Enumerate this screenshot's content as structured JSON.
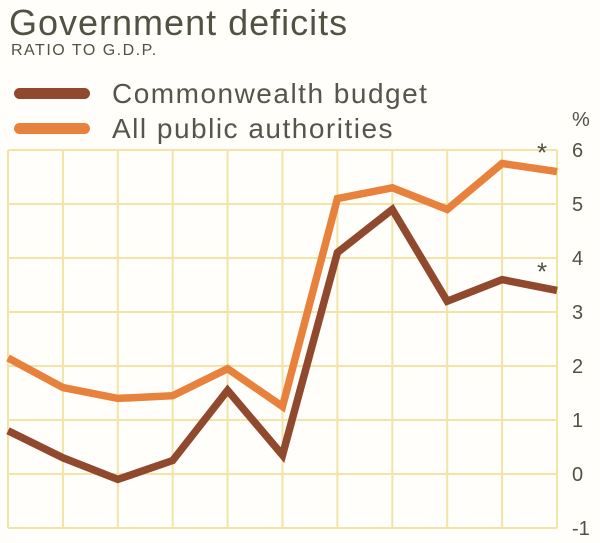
{
  "header": {
    "title": "Government deficits",
    "subtitle": "RATIO TO G.D.P."
  },
  "legend": {
    "items": [
      {
        "label": "Commonwealth budget",
        "color": "#91492e"
      },
      {
        "label": "All public authorities",
        "color": "#e8813c"
      }
    ]
  },
  "axis": {
    "unit": "%",
    "tick_color": "#515243"
  },
  "chart_data": {
    "type": "line",
    "title": "Government deficits",
    "subtitle": "RATIO TO G.D.P.",
    "ylabel": "%",
    "xlabel": "",
    "x_tick_labels": [],
    "ylim": [
      -1,
      6
    ],
    "yticks": [
      6,
      5,
      4,
      3,
      2,
      1,
      0,
      -1
    ],
    "grid": true,
    "grid_color": "#f1e4a6",
    "legend_position": "top-left",
    "series": [
      {
        "name": "Commonwealth budget",
        "color": "#91492e",
        "values": [
          0.8,
          0.3,
          -0.1,
          0.25,
          1.55,
          0.35,
          4.1,
          4.9,
          3.2,
          3.6,
          3.4
        ],
        "end_marker": "*"
      },
      {
        "name": "All public authorities",
        "color": "#e8813c",
        "values": [
          2.15,
          1.6,
          1.4,
          1.45,
          1.95,
          1.25,
          5.1,
          5.3,
          4.9,
          5.75,
          5.6
        ],
        "end_marker": "*"
      }
    ]
  }
}
